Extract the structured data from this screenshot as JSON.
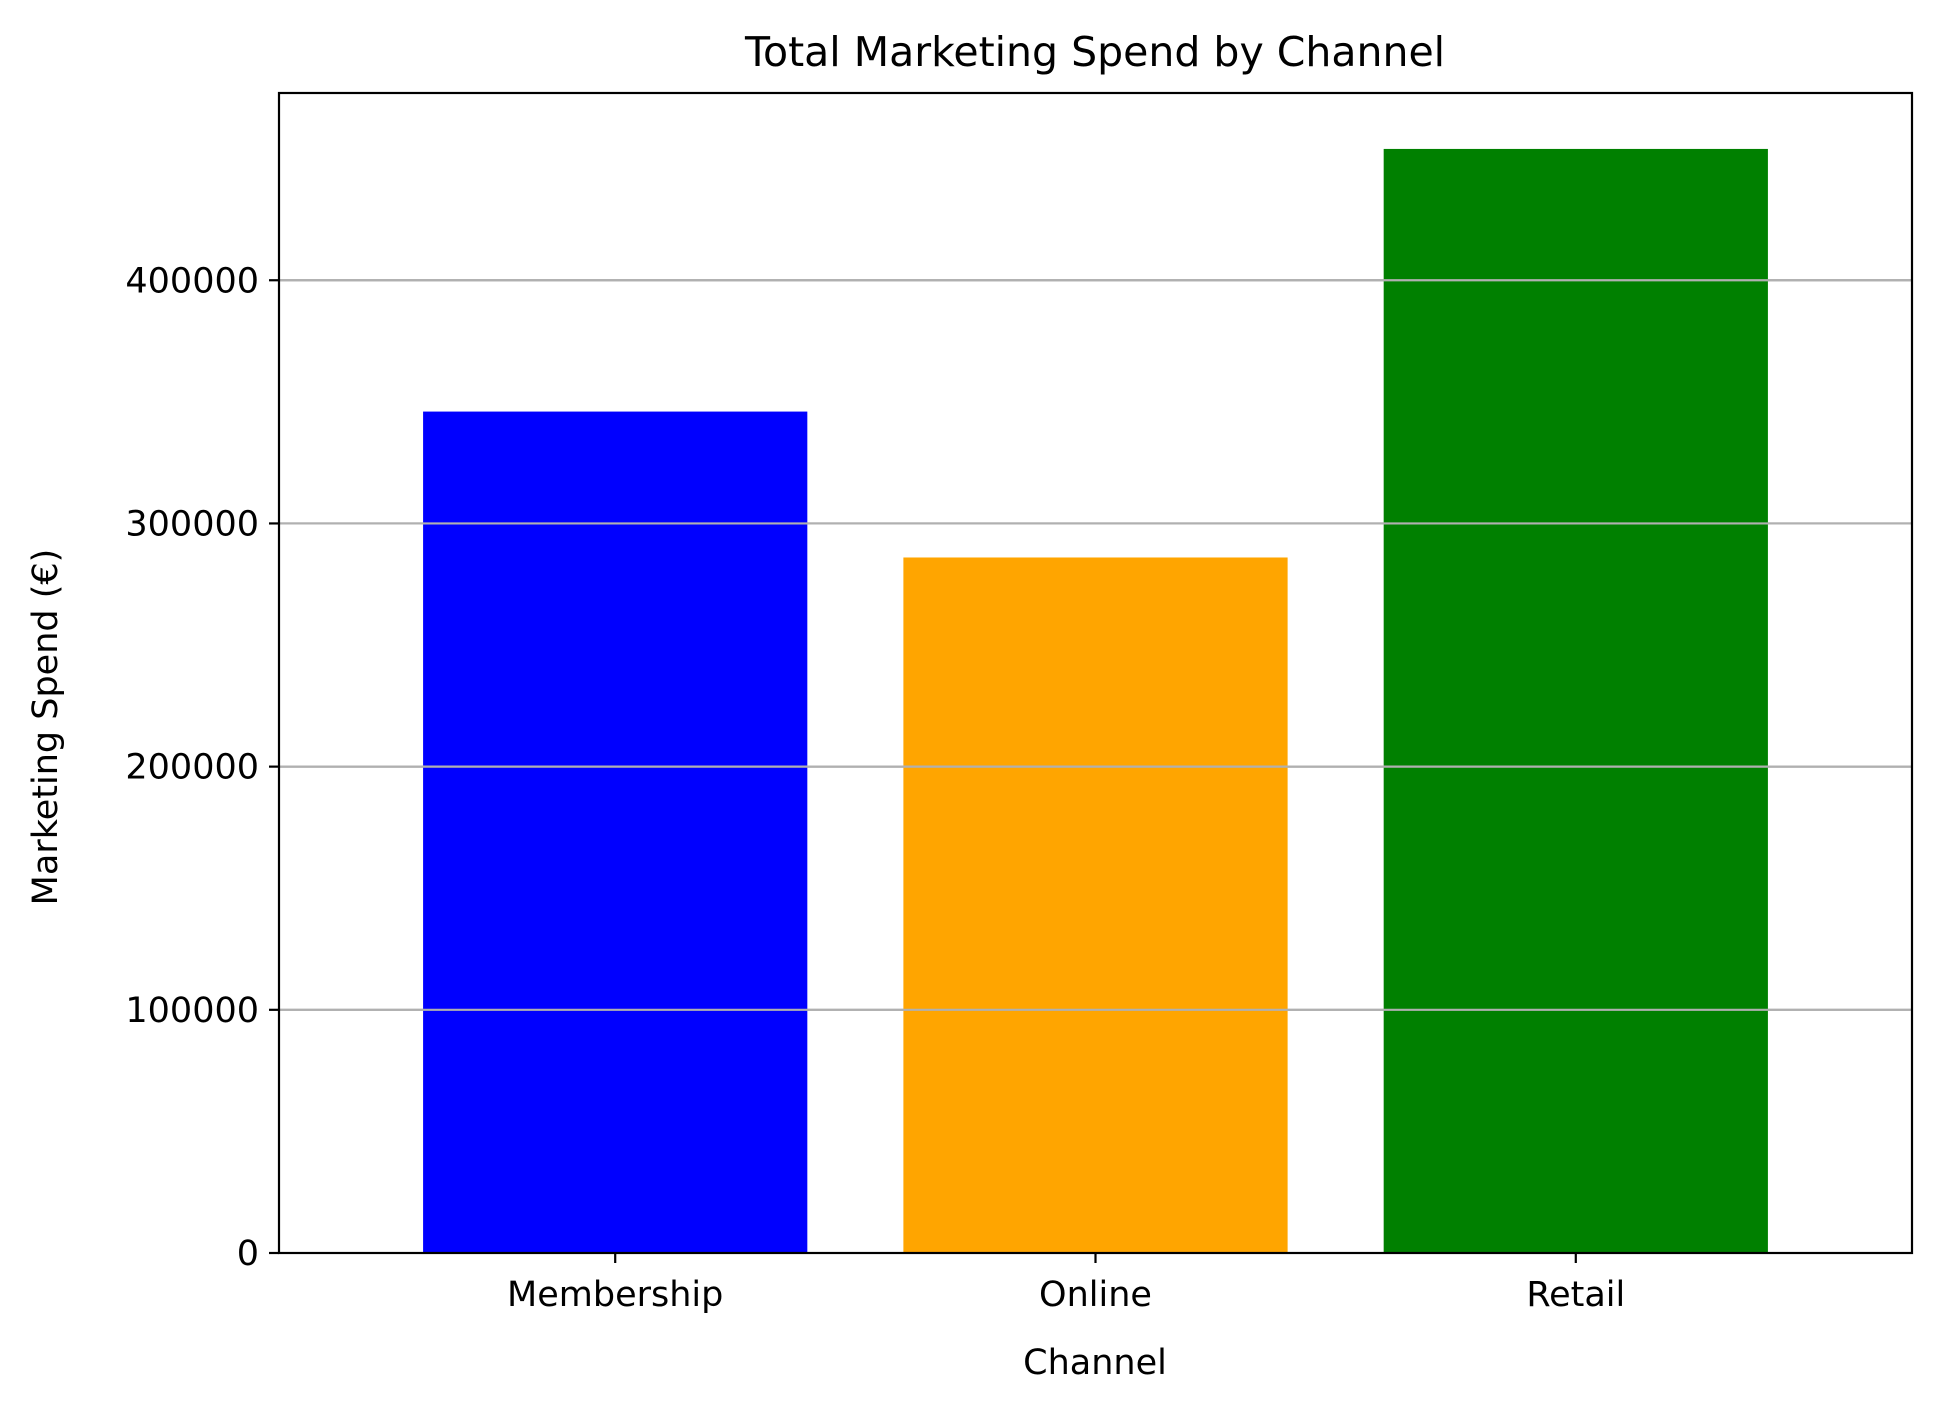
{
  "chart_data": {
    "type": "bar",
    "title": "Total Marketing Spend by Channel",
    "xlabel": "Channel",
    "ylabel": "Marketing Spend (€)",
    "categories": [
      "Membership",
      "Online",
      "Retail"
    ],
    "values": [
      346000,
      286000,
      454000
    ],
    "colors": [
      "#0000ff",
      "#ffa500",
      "#008000"
    ],
    "ylim": [
      0,
      477000
    ],
    "yticks": [
      0,
      100000,
      200000,
      300000,
      400000
    ],
    "ytick_labels": [
      "0",
      "100000",
      "200000",
      "300000",
      "400000"
    ],
    "grid": "horizontal",
    "grid_color": "#b0b0b0",
    "legend": "none"
  }
}
